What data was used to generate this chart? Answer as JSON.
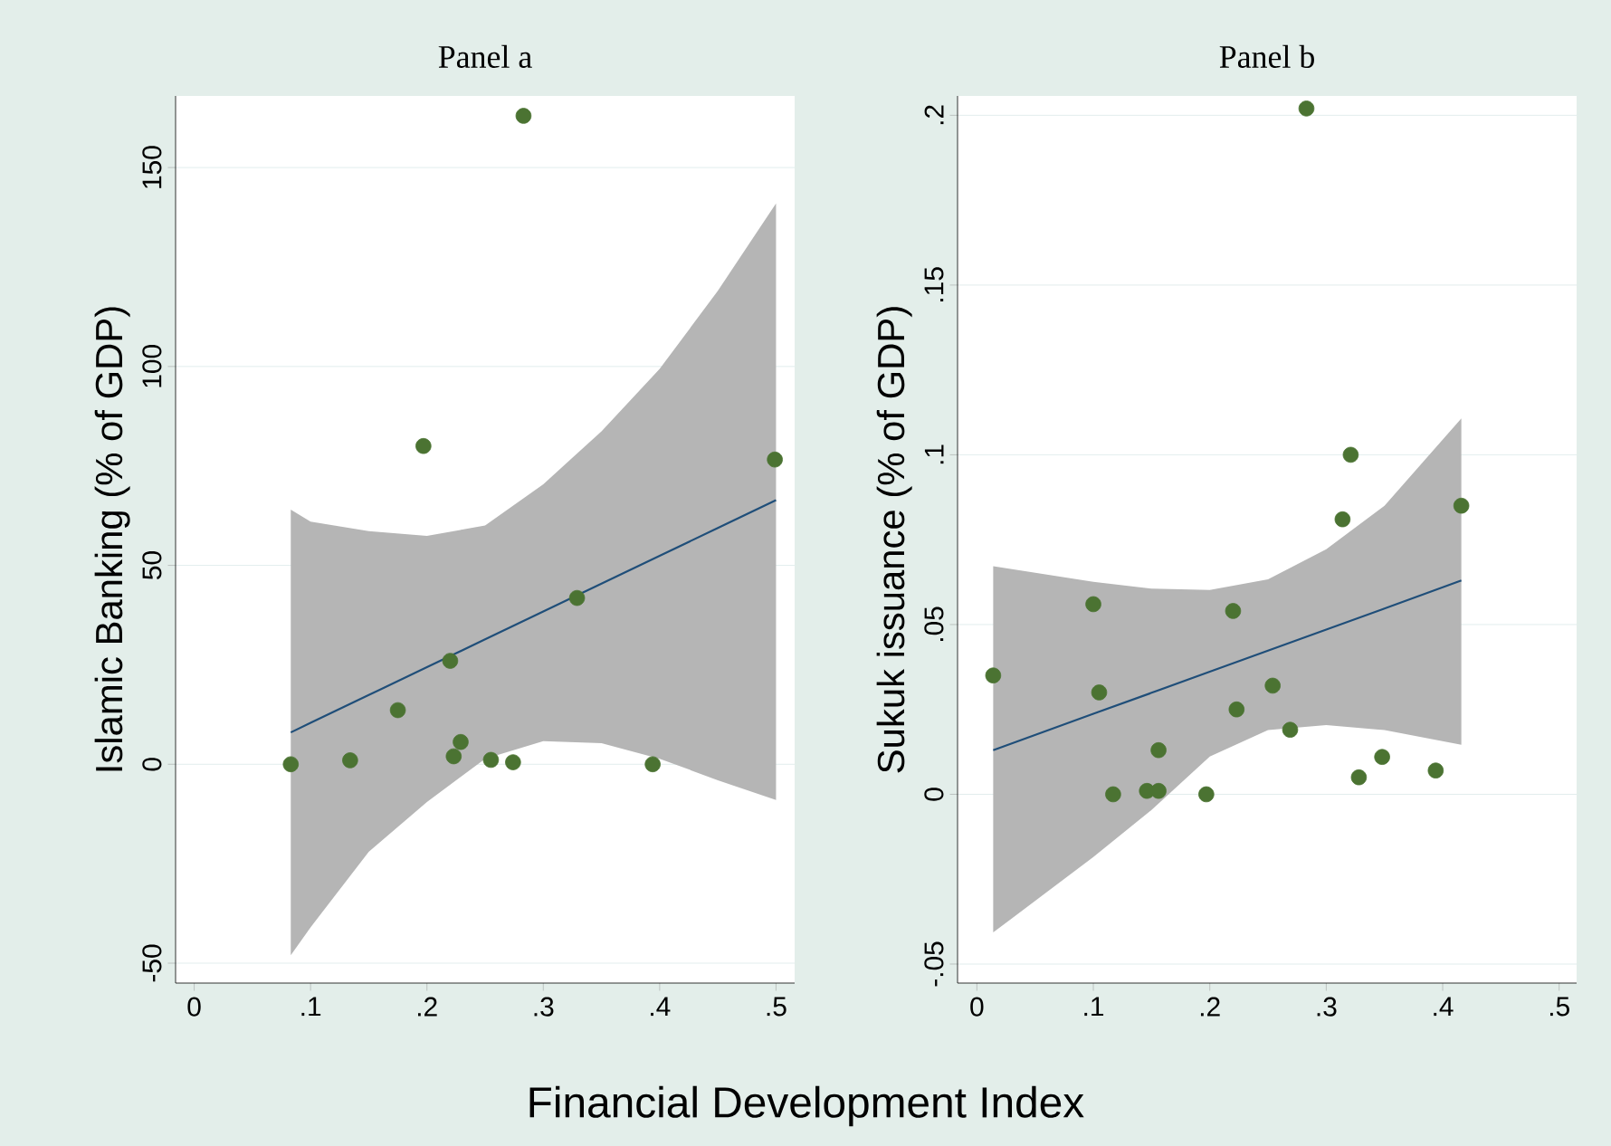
{
  "chart_data": [
    {
      "type": "scatter",
      "title": "Panel a",
      "ylabel": "Islamic Banking (% of GDP)",
      "xlabel": "Financial Development Index",
      "xlim": [
        -0.016,
        0.516
      ],
      "ylim": [
        -55,
        168
      ],
      "xticks": [
        0,
        {
          "value": 0.1,
          "label": ".1"
        },
        {
          "value": 0.2,
          "label": ".2"
        },
        {
          "value": 0.3,
          "label": ".3"
        },
        {
          "value": 0.4,
          "label": ".4"
        },
        {
          "value": 0.5,
          "label": ".5"
        }
      ],
      "yticks": [
        -50,
        0,
        50,
        100,
        150
      ],
      "grid": "y",
      "series": [
        {
          "type": "line",
          "color": "#1f4e79",
          "x": [
            0.083,
            0.1,
            0.15,
            0.2,
            0.25,
            0.3,
            0.35,
            0.4,
            0.45,
            0.5
          ],
          "values": [
            8,
            10.4,
            17.4,
            24.4,
            31.4,
            38.4,
            45.4,
            52.4,
            59.4,
            66.4
          ],
          "lower": [
            -48,
            -41,
            -22,
            -9.5,
            1.4,
            5.8,
            5.3,
            1.4,
            -4,
            -9
          ],
          "upper": [
            64,
            61,
            58.6,
            57.4,
            60,
            70.4,
            83.7,
            99.4,
            119,
            141
          ]
        },
        {
          "type": "scatter",
          "marker": "circle",
          "color": "#4b7332",
          "x": [
            0.083,
            0.134,
            0.175,
            0.197,
            0.22,
            0.223,
            0.229,
            0.255,
            0.274,
            0.283,
            0.329,
            0.394,
            0.499
          ],
          "values": [
            0,
            1,
            13.6,
            80,
            26,
            2,
            5.6,
            1.1,
            0.5,
            163,
            41.8,
            0,
            76.6
          ]
        }
      ]
    },
    {
      "type": "scatter",
      "title": "Panel b",
      "ylabel": "Sukuk issuance (% of GDP)",
      "xlim": [
        -0.0166,
        0.515
      ],
      "ylim": [
        -0.0556,
        0.2057
      ],
      "xticks": [
        0,
        {
          "value": 0.1,
          "label": ".1"
        },
        {
          "value": 0.2,
          "label": ".2"
        },
        {
          "value": 0.3,
          "label": ".3"
        },
        {
          "value": 0.4,
          "label": ".4"
        },
        {
          "value": 0.5,
          "label": ".5"
        }
      ],
      "yticks": [
        {
          "value": -0.05,
          "label": "-.05"
        },
        0,
        {
          "value": 0.05,
          "label": ".05"
        },
        {
          "value": 0.1,
          "label": ".1"
        },
        {
          "value": 0.15,
          "label": ".15"
        },
        {
          "value": 0.2,
          "label": ".2"
        }
      ],
      "grid": "y",
      "series": [
        {
          "type": "line",
          "color": "#1f4e79",
          "x": [
            0.014,
            0.1,
            0.15,
            0.2,
            0.25,
            0.3,
            0.35,
            0.416
          ],
          "values": [
            0.013,
            0.0237,
            0.0299,
            0.0361,
            0.0423,
            0.0485,
            0.0547,
            0.063
          ],
          "lower": [
            -0.0407,
            -0.0185,
            -0.0046,
            0.0111,
            0.0189,
            0.0204,
            0.0189,
            0.0146
          ],
          "upper": [
            0.0672,
            0.0626,
            0.0606,
            0.0602,
            0.0633,
            0.0722,
            0.085,
            0.1107
          ]
        },
        {
          "type": "scatter",
          "marker": "circle",
          "color": "#4b7332",
          "x": [
            0.014,
            0.1,
            0.105,
            0.117,
            0.146,
            0.156,
            0.156,
            0.197,
            0.22,
            0.223,
            0.254,
            0.269,
            0.283,
            0.314,
            0.321,
            0.328,
            0.348,
            0.394,
            0.416
          ],
          "values": [
            0.035,
            0.056,
            0.03,
            0,
            0.001,
            0.001,
            0.013,
            0,
            0.054,
            0.025,
            0.032,
            0.019,
            0.202,
            0.081,
            0.1,
            0.005,
            0.011,
            0.007,
            0.085
          ]
        }
      ]
    }
  ]
}
